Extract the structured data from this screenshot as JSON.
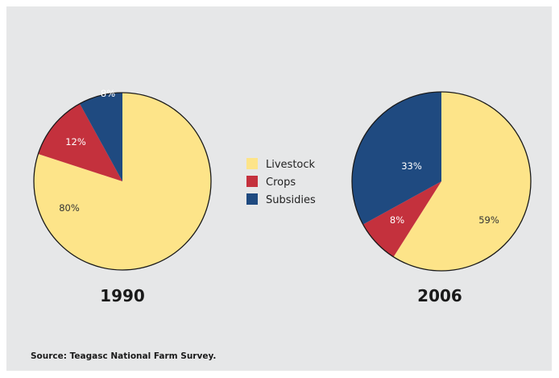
{
  "colors": {
    "Livestock": "#fde489",
    "Crops": "#c4313d",
    "Subsidies": "#1f4a80",
    "outline": "#1a1a1a",
    "panel": "#e6e7e8"
  },
  "chart_data": [
    {
      "type": "pie",
      "title": "1990",
      "slices": [
        {
          "label": "Subsidies",
          "value": 8,
          "display": "8%"
        },
        {
          "label": "Livestock",
          "value": 80,
          "display": "80%"
        },
        {
          "label": "Crops",
          "value": 12,
          "display": "12%"
        }
      ],
      "order_from_top_clockwise": [
        "Livestock",
        "Crops",
        "Subsidies"
      ]
    },
    {
      "type": "pie",
      "title": "2006",
      "slices": [
        {
          "label": "Livestock",
          "value": 59,
          "display": "59%"
        },
        {
          "label": "Crops",
          "value": 8,
          "display": "8%"
        },
        {
          "label": "Subsidies",
          "value": 33,
          "display": "33%"
        }
      ],
      "order_from_top_clockwise": [
        "Livestock",
        "Crops",
        "Subsidies"
      ]
    }
  ],
  "legend": {
    "placement": "center",
    "items": [
      "Livestock",
      "Crops",
      "Subsidies"
    ]
  },
  "source": "Source: Teagasc National Farm Survey."
}
